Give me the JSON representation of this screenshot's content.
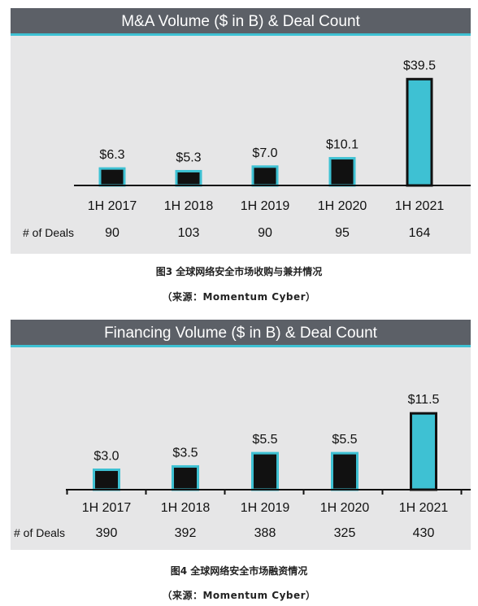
{
  "chart_data": [
    {
      "type": "bar",
      "title": "M&A Volume ($ in B) & Deal Count",
      "categories": [
        "1H 2017",
        "1H 2018",
        "1H 2019",
        "1H 2020",
        "1H 2021"
      ],
      "values": [
        6.3,
        5.3,
        7.0,
        10.1,
        39.5
      ],
      "value_labels": [
        "$6.3",
        "$5.3",
        "$7.0",
        "$10.1",
        "$39.5"
      ],
      "deals_label": "# of Deals",
      "deals": [
        "90",
        "103",
        "90",
        "95",
        "164"
      ],
      "ylim": [
        0,
        42
      ],
      "colors": {
        "bar": "#111111",
        "bar_outline": "#3ec1d3",
        "highlight": "#3ec1d3"
      }
    },
    {
      "type": "bar",
      "title": "Financing Volume ($ in B) & Deal Count",
      "categories": [
        "1H 2017",
        "1H 2018",
        "1H 2019",
        "1H 2020",
        "1H 2021"
      ],
      "values": [
        3.0,
        3.5,
        5.5,
        5.5,
        11.5
      ],
      "value_labels": [
        "$3.0",
        "$3.5",
        "$5.5",
        "$5.5",
        "$11.5"
      ],
      "deals_label": "# of Deals",
      "deals": [
        "390",
        "392",
        "388",
        "325",
        "430"
      ],
      "ylim": [
        0,
        12.5
      ],
      "colors": {
        "bar": "#111111",
        "bar_outline": "#3ec1d3",
        "highlight": "#3ec1d3"
      }
    }
  ],
  "captions": [
    {
      "title": "图3 全球网络安全市场收购与兼并情况",
      "source": "（来源：Momentum Cyber）"
    },
    {
      "title": "图4 全球网络安全市场融资情况",
      "source": "（来源：Momentum Cyber）"
    }
  ]
}
